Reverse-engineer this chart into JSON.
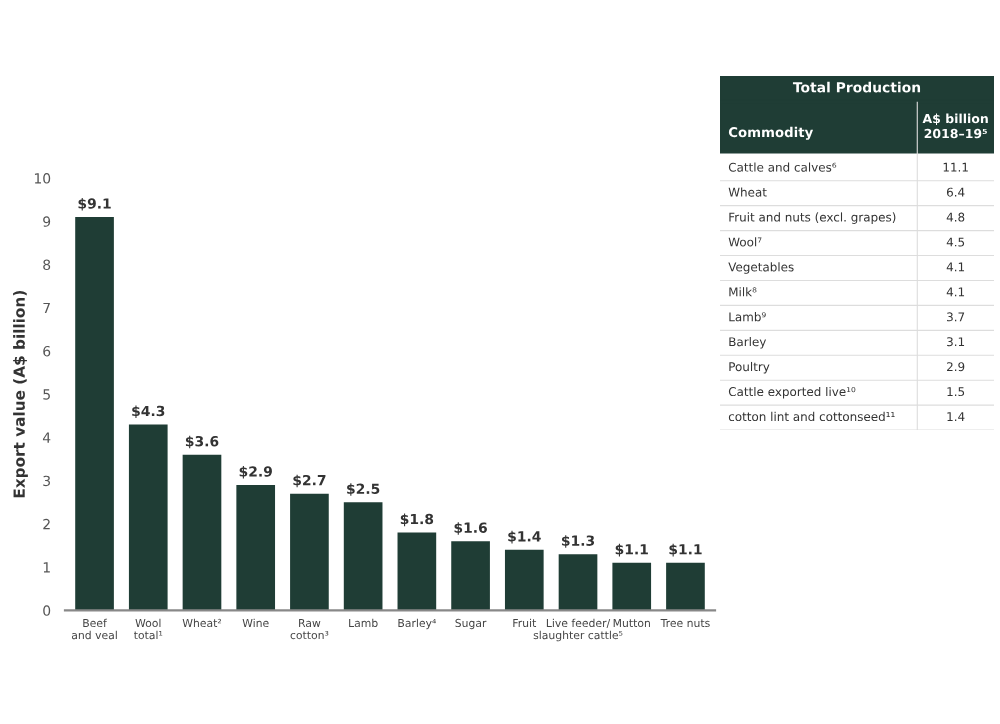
{
  "chart_data": [
    {
      "type": "bar",
      "ylabel": "Export value (A$ billion)",
      "categories": [
        "Beef\nand veal",
        "Wool\ntotal¹",
        "Wheat²",
        "Wine",
        "Raw\ncotton³",
        "Lamb",
        "Barley⁴",
        "Sugar",
        "Fruit",
        "Live feeder/\nslaughter cattle⁵",
        "Mutton",
        "Tree nuts"
      ],
      "values": [
        9.1,
        4.3,
        3.6,
        2.9,
        2.7,
        2.5,
        1.8,
        1.6,
        1.4,
        1.3,
        1.1,
        1.1
      ],
      "value_labels": [
        "$9.1",
        "$4.3",
        "$3.6",
        "$2.9",
        "$2.7",
        "$2.5",
        "$1.8",
        "$1.6",
        "$1.4",
        "$1.3",
        "$1.1",
        "$1.1"
      ],
      "color": "#1f3d35",
      "ylim": [
        0,
        10
      ],
      "yticks": [
        0,
        1,
        2,
        3,
        4,
        5,
        6,
        7,
        8,
        9,
        10
      ],
      "grid": false
    },
    {
      "type": "other",
      "title": "Total Production",
      "xlabel": "Commodity",
      "ylabel": "A$ billion 2018–19⁵",
      "categories": [
        "Cattle and calves⁶",
        "Wheat",
        "Fruit and nuts (excl. grapes)",
        "Wool⁷",
        "Vegetables",
        "Milk⁸",
        "Lamb⁹",
        "Barley",
        "Poultry",
        "Cattle exported live¹⁰",
        "cotton lint and cottonseed¹¹"
      ],
      "values": [
        11.1,
        6.4,
        4.8,
        4.5,
        4.1,
        4.1,
        3.7,
        3.1,
        2.9,
        1.5,
        1.4
      ],
      "color": "#1f3d35",
      "data_labels": true
    }
  ]
}
